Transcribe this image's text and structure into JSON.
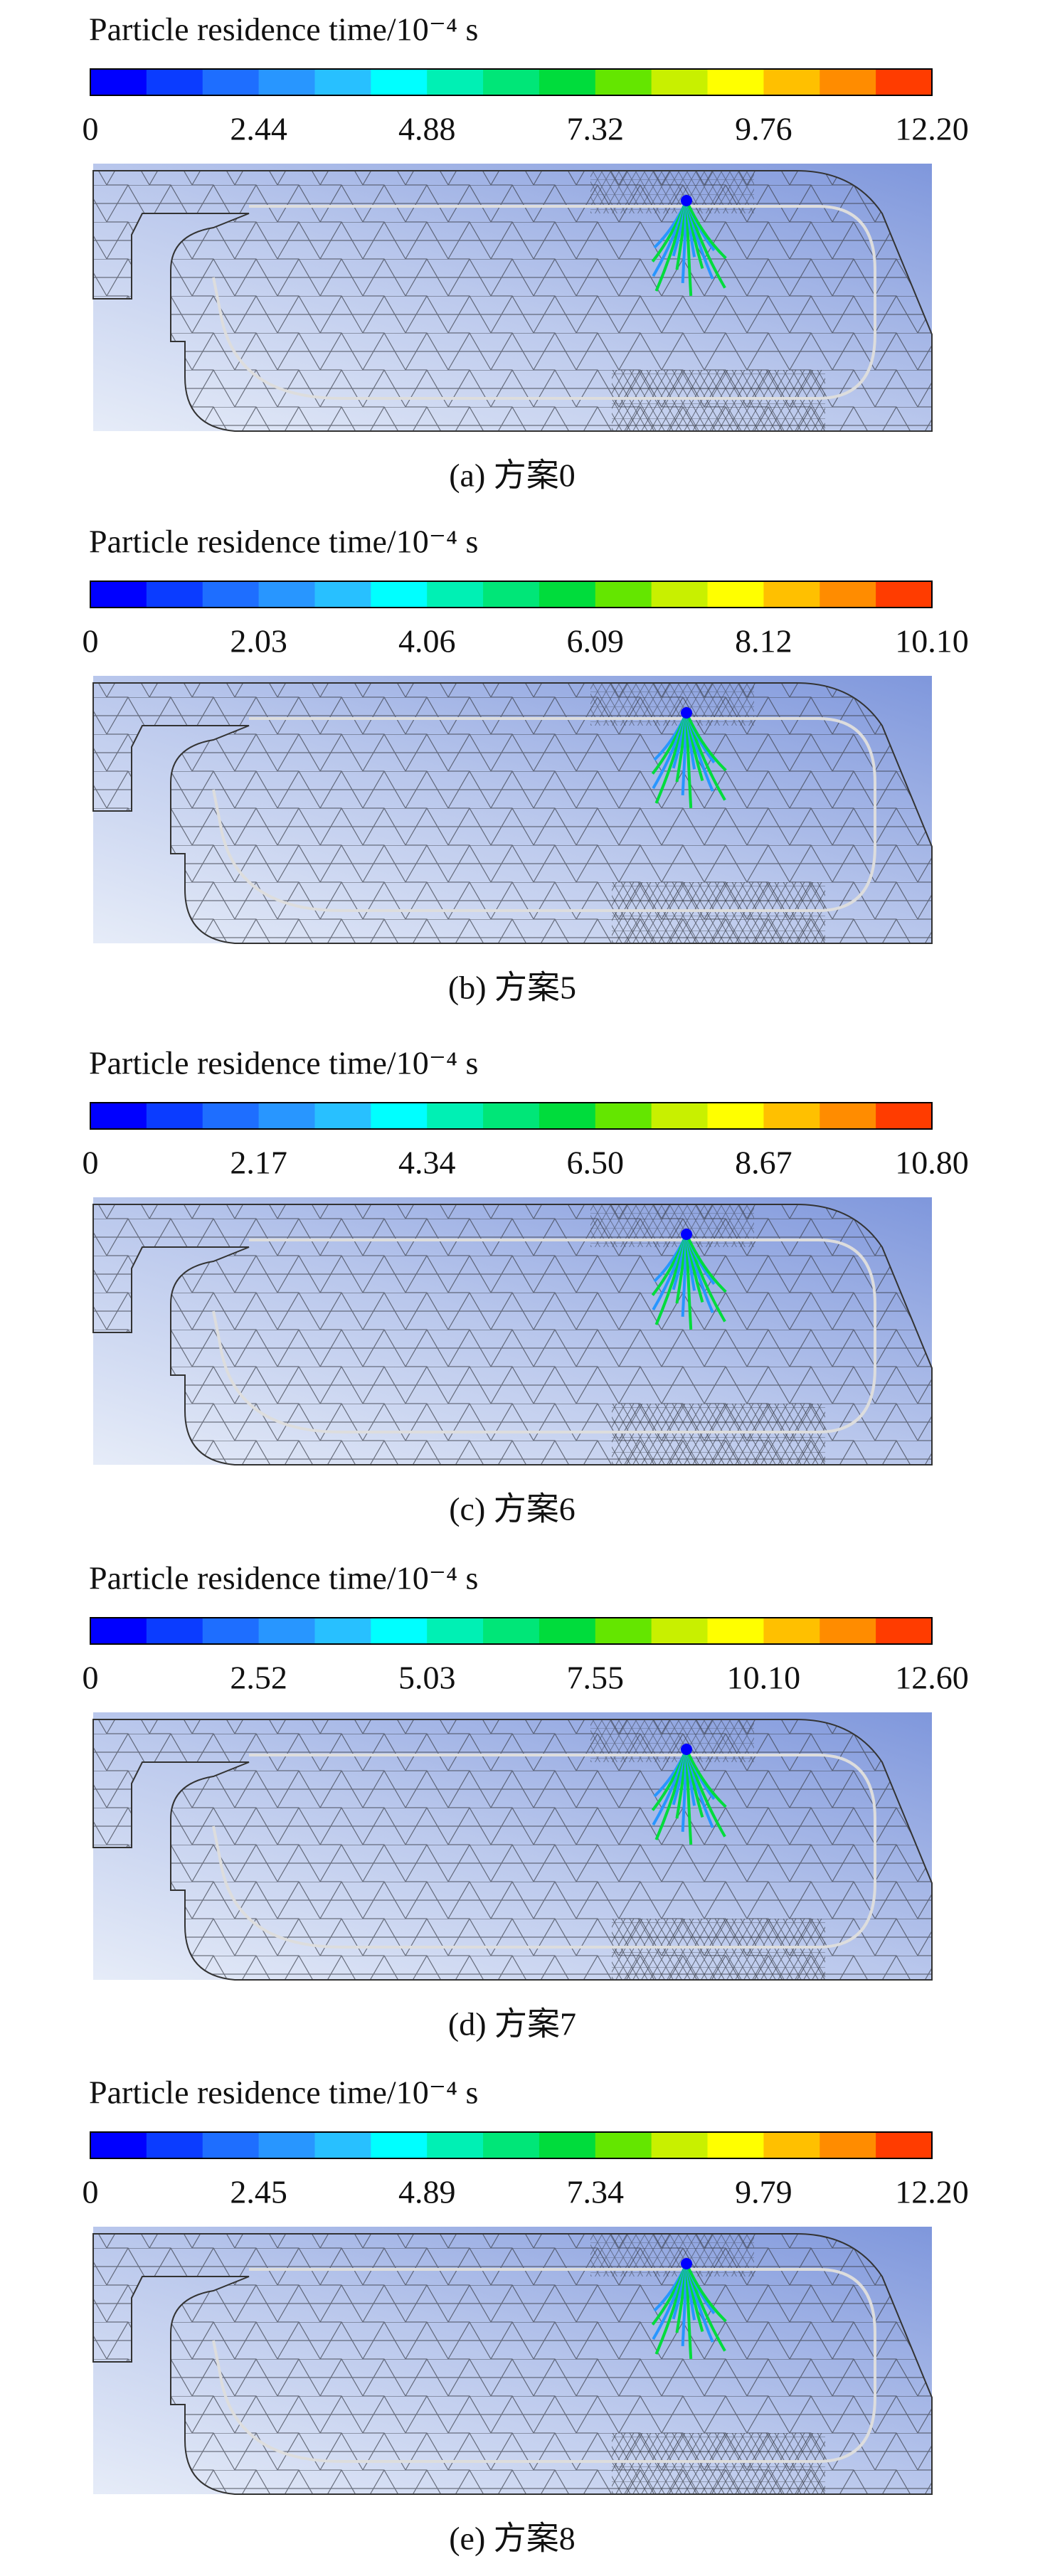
{
  "panels": [
    {
      "title": "Particle residence time/10⁻⁴ s",
      "ticks": [
        "0",
        "2.44",
        "4.88",
        "7.32",
        "9.76",
        "12.20"
      ],
      "caption": "(a) 方案0"
    },
    {
      "title": "Particle residence time/10⁻⁴ s",
      "ticks": [
        "0",
        "2.03",
        "4.06",
        "6.09",
        "8.12",
        "10.10"
      ],
      "caption": "(b) 方案5"
    },
    {
      "title": "Particle residence time/10⁻⁴ s",
      "ticks": [
        "0",
        "2.17",
        "4.34",
        "6.50",
        "8.67",
        "10.80"
      ],
      "caption": "(c) 方案6"
    },
    {
      "title": "Particle residence time/10⁻⁴ s",
      "ticks": [
        "0",
        "2.52",
        "5.03",
        "7.55",
        "10.10",
        "12.60"
      ],
      "caption": "(d) 方案7"
    },
    {
      "title": "Particle residence time/10⁻⁴ s",
      "ticks": [
        "0",
        "2.45",
        "4.89",
        "7.34",
        "9.79",
        "12.20"
      ],
      "caption": "(e) 方案8"
    }
  ]
}
